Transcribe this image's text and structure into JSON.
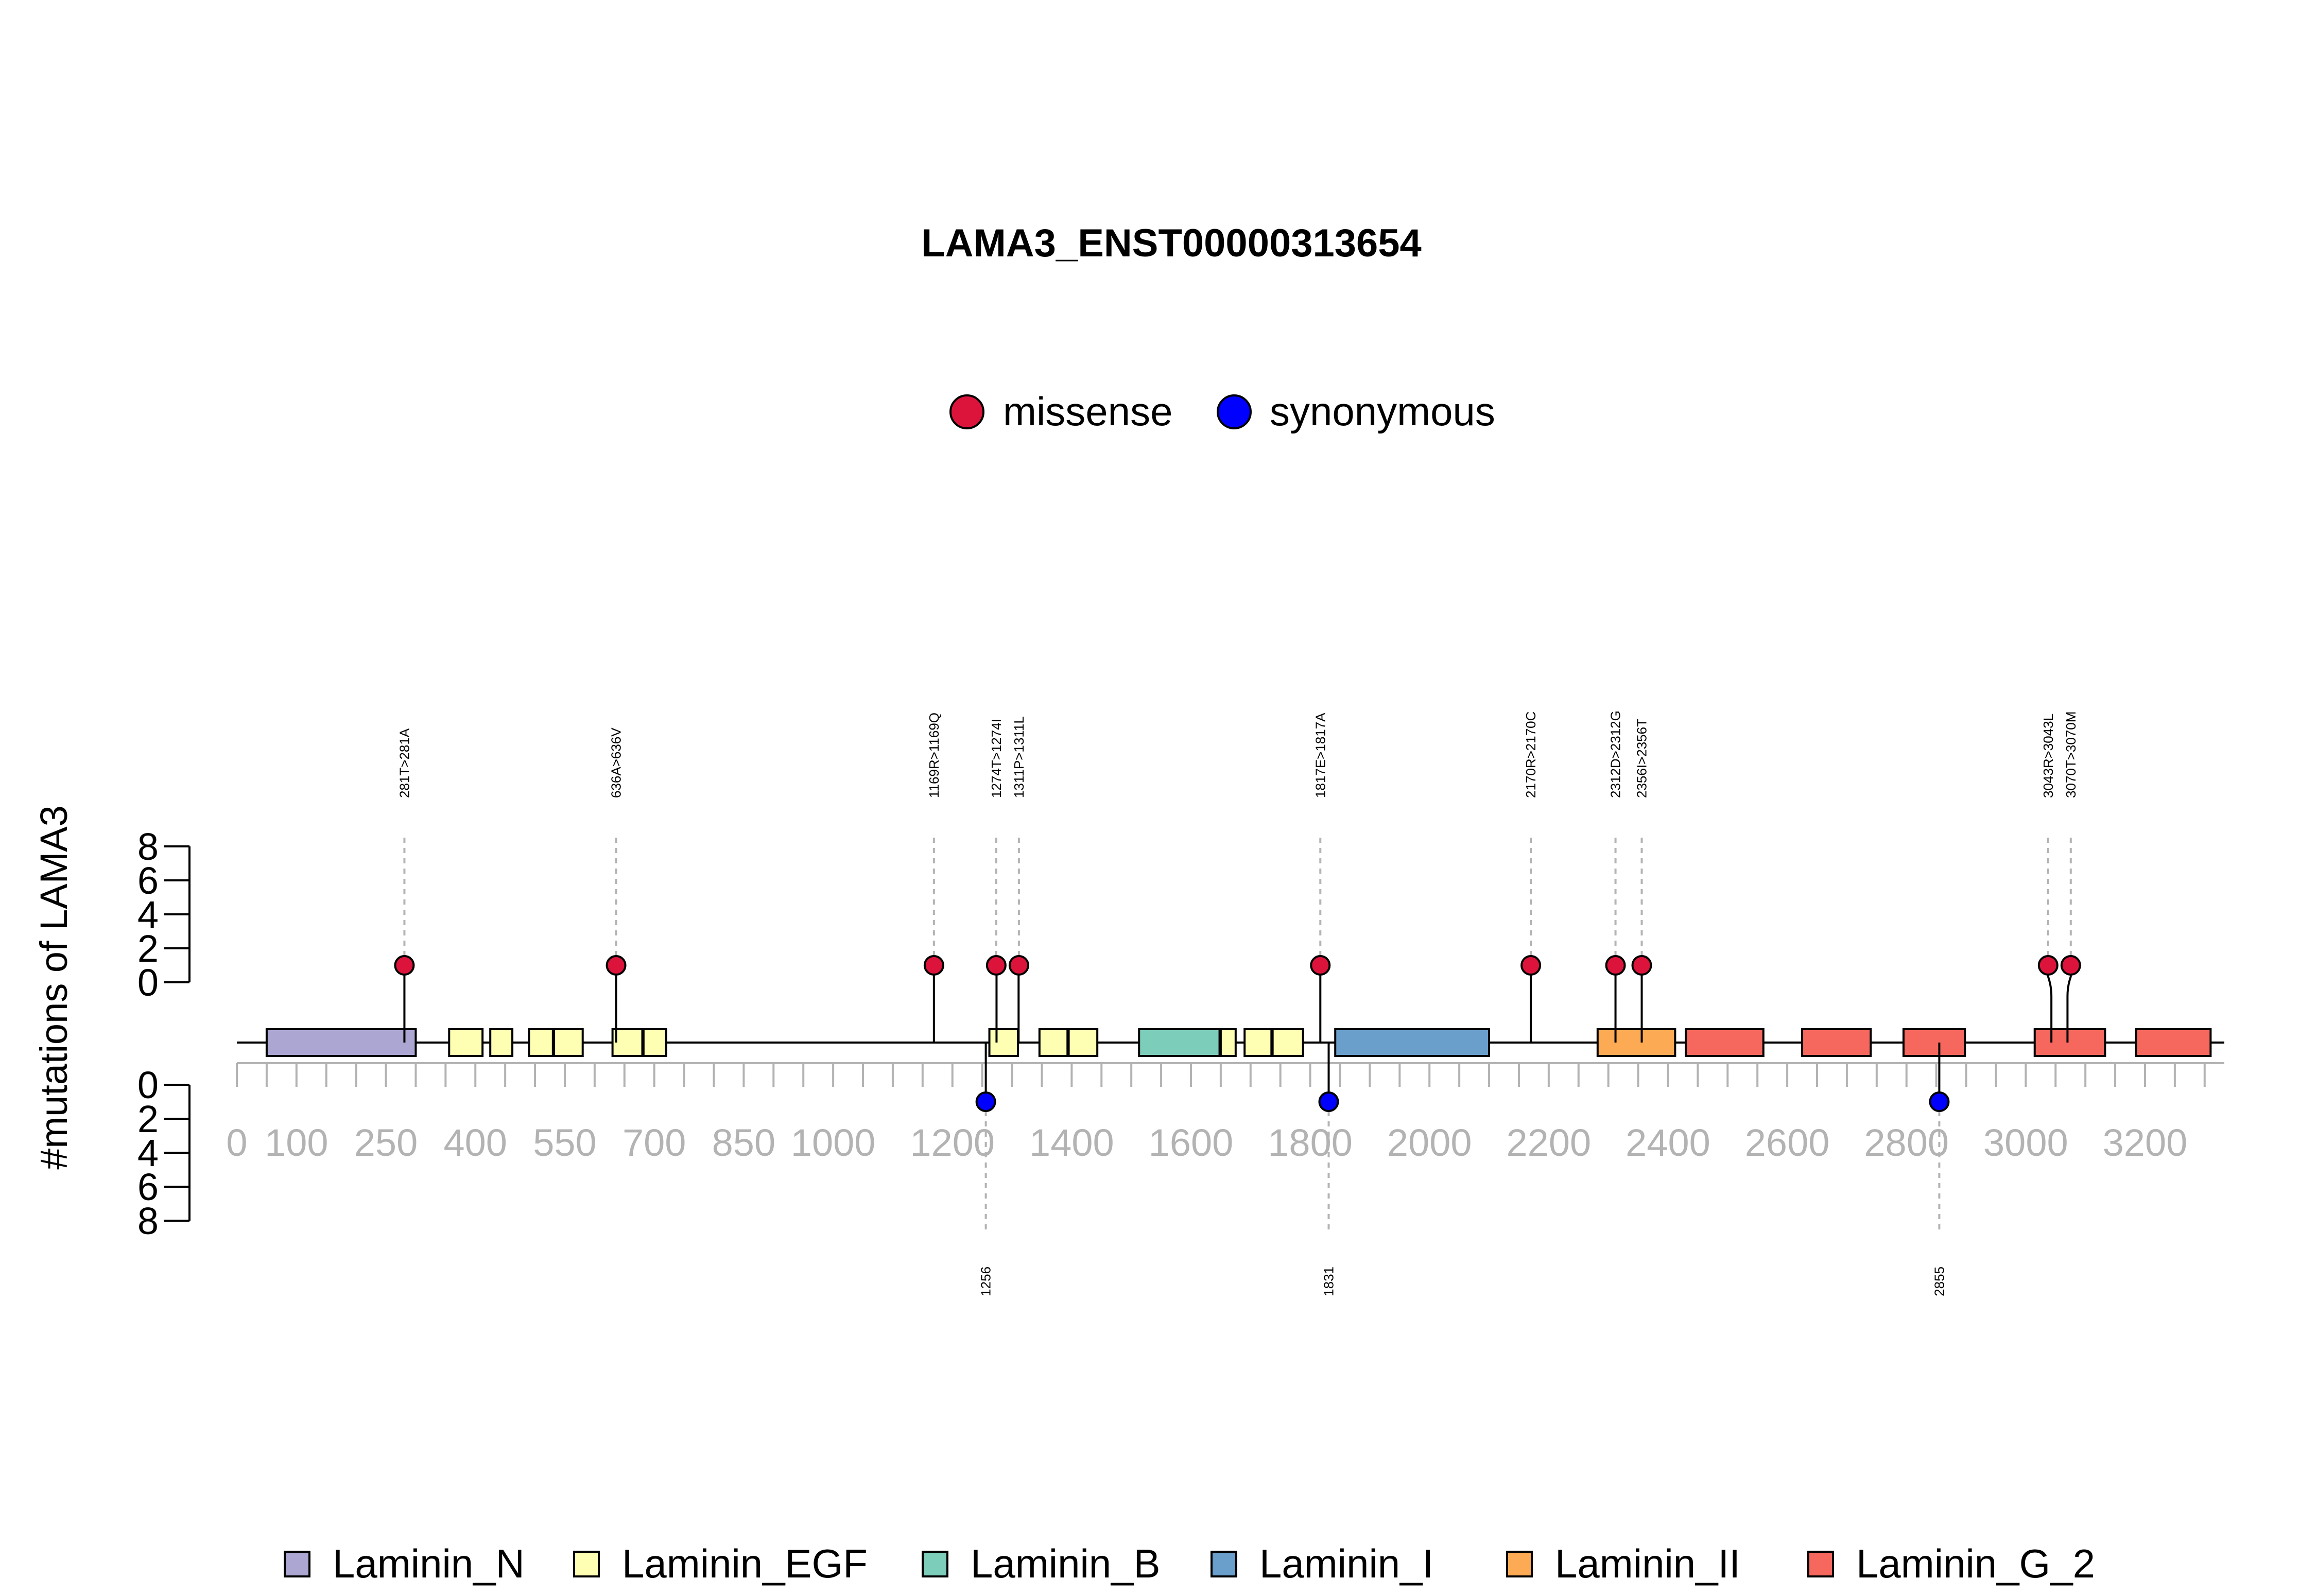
{
  "chart_data": {
    "type": "lollipop",
    "title": "LAMA3_ENST00000313654",
    "ylabel": "#mutations of LAMA3",
    "protein_length": 3333,
    "xlim": [
      0,
      3333
    ],
    "x_ticks": [
      0,
      100,
      250,
      400,
      550,
      700,
      850,
      1000,
      1200,
      1400,
      1600,
      1800,
      2000,
      2200,
      2400,
      2600,
      2800,
      3000,
      3200
    ],
    "y_ticks_top": [
      0,
      2,
      4,
      6,
      8
    ],
    "y_ticks_bottom": [
      0,
      2,
      4,
      6,
      8
    ],
    "ylim": [
      0,
      8
    ],
    "mutation_legend": [
      {
        "name": "missense",
        "color": "#DC143C"
      },
      {
        "name": "synonymous",
        "color": "#0000FF"
      }
    ],
    "domain_legend": [
      {
        "name": "Laminin_N",
        "color": "#ABA6D2"
      },
      {
        "name": "Laminin_EGF",
        "color": "#FFFFB3"
      },
      {
        "name": "Laminin_B",
        "color": "#7DCDBB"
      },
      {
        "name": "Laminin_I",
        "color": "#6A9FCB"
      },
      {
        "name": "Laminin_II",
        "color": "#FDAA55"
      },
      {
        "name": "Laminin_G_2",
        "color": "#F6685E"
      }
    ],
    "domains": [
      {
        "name": "Laminin_N",
        "start": 50,
        "end": 300
      },
      {
        "name": "Laminin_EGF",
        "start": 356,
        "end": 412
      },
      {
        "name": "Laminin_EGF",
        "start": 425,
        "end": 462
      },
      {
        "name": "Laminin_EGF",
        "start": 490,
        "end": 530
      },
      {
        "name": "Laminin_EGF",
        "start": 532,
        "end": 580
      },
      {
        "name": "Laminin_EGF",
        "start": 630,
        "end": 680
      },
      {
        "name": "Laminin_EGF",
        "start": 682,
        "end": 720
      },
      {
        "name": "Laminin_EGF",
        "start": 1262,
        "end": 1310
      },
      {
        "name": "Laminin_EGF",
        "start": 1346,
        "end": 1393
      },
      {
        "name": "Laminin_EGF",
        "start": 1395,
        "end": 1443
      },
      {
        "name": "Laminin_B",
        "start": 1513,
        "end": 1648
      },
      {
        "name": "Laminin_EGF",
        "start": 1650,
        "end": 1675
      },
      {
        "name": "Laminin_EGF",
        "start": 1690,
        "end": 1735
      },
      {
        "name": "Laminin_EGF",
        "start": 1737,
        "end": 1788
      },
      {
        "name": "Laminin_I",
        "start": 1842,
        "end": 2100
      },
      {
        "name": "Laminin_II",
        "start": 2282,
        "end": 2412
      },
      {
        "name": "Laminin_G_2",
        "start": 2430,
        "end": 2560
      },
      {
        "name": "Laminin_G_2",
        "start": 2625,
        "end": 2740
      },
      {
        "name": "Laminin_G_2",
        "start": 2795,
        "end": 2898
      },
      {
        "name": "Laminin_G_2",
        "start": 3015,
        "end": 3133
      },
      {
        "name": "Laminin_G_2",
        "start": 3185,
        "end": 3310
      }
    ],
    "mutations_above": [
      {
        "position": 281,
        "count": 1,
        "type": "missense",
        "label": "281T>281A"
      },
      {
        "position": 636,
        "count": 1,
        "type": "missense",
        "label": "636A>636V"
      },
      {
        "position": 1169,
        "count": 1,
        "type": "missense",
        "label": "1169R>1169Q"
      },
      {
        "position": 1274,
        "count": 1,
        "type": "missense",
        "label": "1274T>1274I"
      },
      {
        "position": 1311,
        "count": 1,
        "type": "missense",
        "label": "1311P>1311L"
      },
      {
        "position": 1817,
        "count": 1,
        "type": "missense",
        "label": "1817E>1817A"
      },
      {
        "position": 2170,
        "count": 1,
        "type": "missense",
        "label": "2170R>2170C"
      },
      {
        "position": 2312,
        "count": 1,
        "type": "missense",
        "label": "2312D>2312G"
      },
      {
        "position": 2356,
        "count": 1,
        "type": "missense",
        "label": "2356I>2356T"
      },
      {
        "position": 3043,
        "count": 1,
        "type": "missense",
        "label": "3043R>3043L"
      },
      {
        "position": 3070,
        "count": 1,
        "type": "missense",
        "label": "3070T>3070M"
      }
    ],
    "mutations_below": [
      {
        "position": 1256,
        "count": 1,
        "type": "synonymous",
        "label": "1256"
      },
      {
        "position": 1831,
        "count": 1,
        "type": "synonymous",
        "label": "1831"
      },
      {
        "position": 2855,
        "count": 1,
        "type": "synonymous",
        "label": "2855"
      }
    ]
  }
}
